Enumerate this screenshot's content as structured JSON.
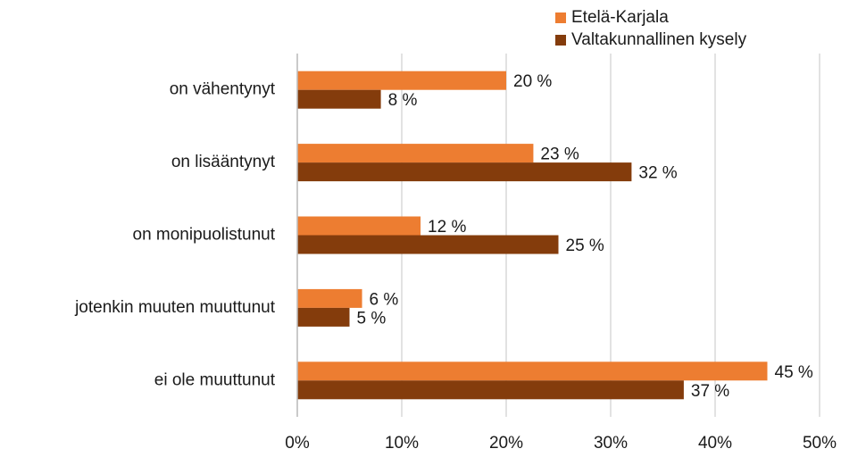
{
  "chart_data": {
    "type": "hbar",
    "categories": [
      "on vähentynyt",
      "on lisääntynyt",
      "on monipuolistunut",
      "jotenkin muuten muuttunut",
      "ei ole muuttunut"
    ],
    "series": [
      {
        "name": "Etelä-Karjala",
        "color": "#ed7d31",
        "values": [
          20,
          22.6,
          11.8,
          6.2,
          45
        ],
        "value_labels": [
          "20 %",
          "23 %",
          "12 %",
          "6 %",
          "45 %"
        ]
      },
      {
        "name": "Valtakunnallinen kysely",
        "color": "#843c0c",
        "values": [
          8,
          32,
          25,
          5,
          37
        ],
        "value_labels": [
          "8 %",
          "32 %",
          "25 %",
          "5 %",
          "37 %"
        ]
      }
    ],
    "xlim": [
      0,
      50
    ],
    "xticks": [
      {
        "value": 0,
        "label": "0%"
      },
      {
        "value": 10,
        "label": "10%"
      },
      {
        "value": 20,
        "label": "20%"
      },
      {
        "value": 30,
        "label": "30%"
      },
      {
        "value": 40,
        "label": "40%"
      },
      {
        "value": 50,
        "label": "50%"
      }
    ],
    "grid": true,
    "legend": "top-right"
  }
}
